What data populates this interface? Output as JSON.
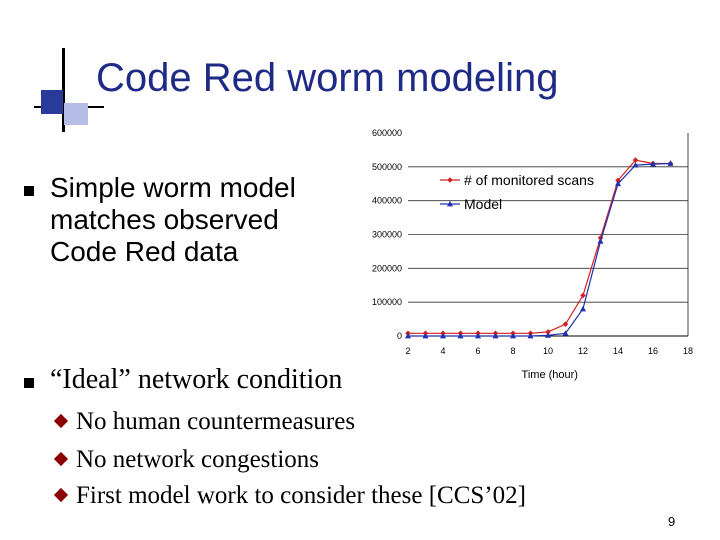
{
  "slide": {
    "title": "Code Red worm modeling",
    "page_number": "9",
    "bullets": [
      {
        "text": "Simple worm model matches observed Code Red data"
      },
      {
        "text": "“Ideal” network condition"
      }
    ],
    "sub_bullets": [
      {
        "text": "No human countermeasures"
      },
      {
        "text": "No network congestions"
      },
      {
        "text": "First model work to consider these [CCS’02]"
      }
    ],
    "colors": {
      "title": "#1f2a86",
      "accent_dark": "#2a3a9a",
      "accent_light": "#b6bde6",
      "sub_bullet": "#8b0000"
    }
  },
  "chart_data": {
    "type": "line",
    "xlabel": "Time (hour)",
    "ylabel": "",
    "x": [
      2,
      3,
      4,
      5,
      6,
      7,
      8,
      9,
      10,
      11,
      12,
      13,
      14,
      15,
      16,
      17
    ],
    "xlim": [
      2,
      18
    ],
    "ylim": [
      0,
      600000
    ],
    "x_ticks": [
      "2",
      "4",
      "6",
      "8",
      "10",
      "12",
      "14",
      "16",
      "18"
    ],
    "y_ticks": [
      "0",
      "100000",
      "200000",
      "300000",
      "400000",
      "500000",
      "600000"
    ],
    "grid": "horizontal",
    "legend": "top-right",
    "series": [
      {
        "name": "# of monitored scans",
        "color": "#d42020",
        "marker": "diamond",
        "values": [
          8000,
          8000,
          8000,
          8000,
          8000,
          8000,
          8000,
          8000,
          12000,
          35000,
          120000,
          290000,
          460000,
          520000,
          510000,
          510000
        ]
      },
      {
        "name": "Model",
        "color": "#2030b0",
        "marker": "triangle",
        "values": [
          0,
          0,
          0,
          0,
          0,
          0,
          0,
          0,
          2000,
          8000,
          80000,
          280000,
          450000,
          505000,
          508000,
          510000
        ]
      }
    ]
  }
}
